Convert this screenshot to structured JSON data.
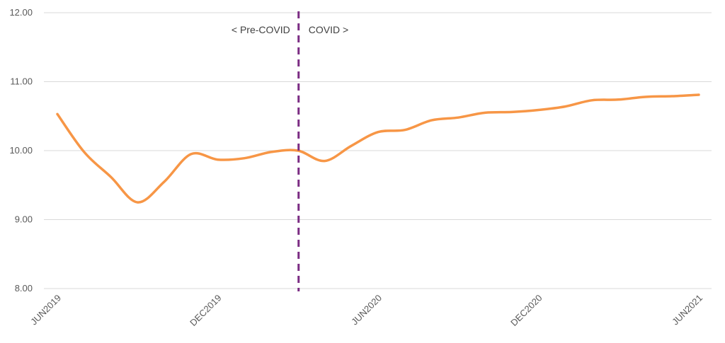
{
  "chart_data": {
    "type": "line",
    "title": "",
    "xlabel": "",
    "ylabel": "",
    "ylim": [
      8.0,
      12.0
    ],
    "yticks": [
      "8.00",
      "9.00",
      "10.00",
      "11.00",
      "12.00"
    ],
    "x_labels": [
      "JUN2019",
      "DEC2019",
      "JUN2020",
      "DEC2020",
      "JUN2021"
    ],
    "grid": true,
    "legend": "none",
    "series": [
      {
        "color": "#F79646",
        "points": [
          {
            "month": "2019-06",
            "value": 10.53
          },
          {
            "month": "2019-07",
            "value": 9.98
          },
          {
            "month": "2019-08",
            "value": 9.62
          },
          {
            "month": "2019-09",
            "value": 9.25
          },
          {
            "month": "2019-10",
            "value": 9.55
          },
          {
            "month": "2019-11",
            "value": 9.95
          },
          {
            "month": "2019-12",
            "value": 9.87
          },
          {
            "month": "2020-01",
            "value": 9.89
          },
          {
            "month": "2020-02",
            "value": 9.98
          },
          {
            "month": "2020-03",
            "value": 10.0
          },
          {
            "month": "2020-04",
            "value": 9.85
          },
          {
            "month": "2020-05",
            "value": 10.07
          },
          {
            "month": "2020-06",
            "value": 10.27
          },
          {
            "month": "2020-07",
            "value": 10.3
          },
          {
            "month": "2020-08",
            "value": 10.44
          },
          {
            "month": "2020-09",
            "value": 10.48
          },
          {
            "month": "2020-10",
            "value": 10.55
          },
          {
            "month": "2020-11",
            "value": 10.56
          },
          {
            "month": "2020-12",
            "value": 10.59
          },
          {
            "month": "2021-01",
            "value": 10.64
          },
          {
            "month": "2021-02",
            "value": 10.73
          },
          {
            "month": "2021-03",
            "value": 10.74
          },
          {
            "month": "2021-04",
            "value": 10.78
          },
          {
            "month": "2021-05",
            "value": 10.79
          },
          {
            "month": "2021-06",
            "value": 10.81
          }
        ]
      }
    ],
    "divider": {
      "month": "2020-03",
      "color": "#7B2C83",
      "left_label": "< Pre-COVID",
      "right_label": "COVID >"
    }
  }
}
